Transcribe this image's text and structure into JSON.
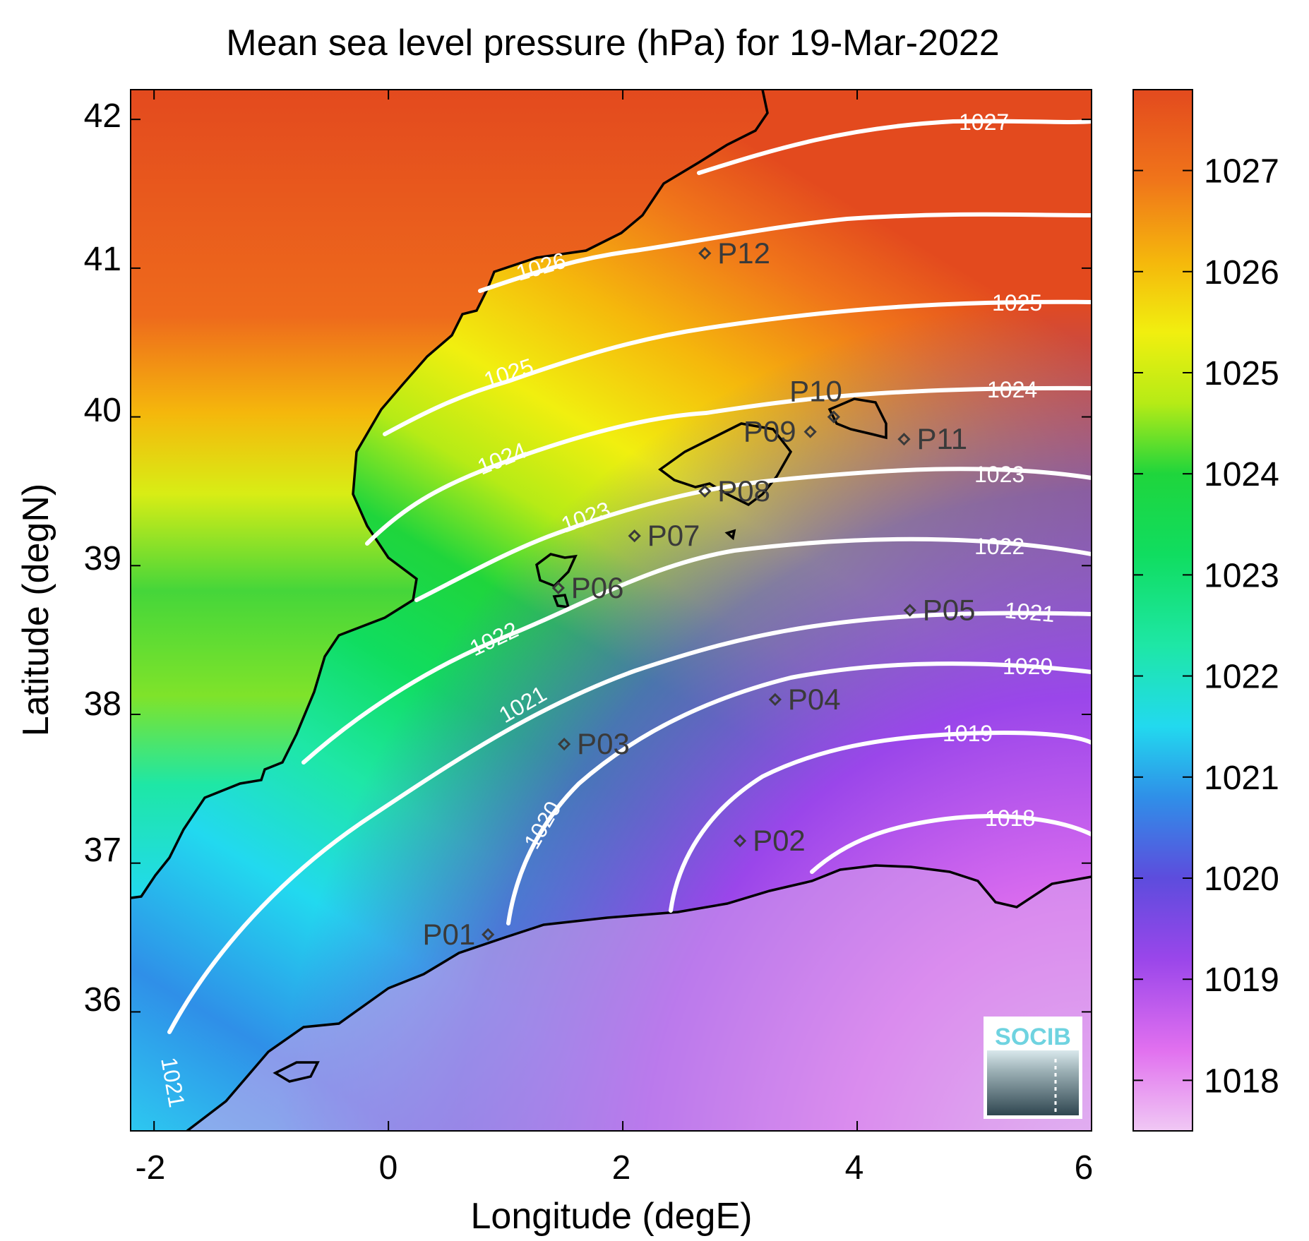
{
  "title": "Mean sea level pressure (hPa) for 19-Mar-2022",
  "x_axis": {
    "label": "Longitude (degE)",
    "ticks": [
      "-2",
      "0",
      "2",
      "4",
      "6"
    ]
  },
  "y_axis": {
    "label": "Latitude (degN)",
    "ticks": [
      "42",
      "41",
      "40",
      "39",
      "38",
      "37",
      "36"
    ]
  },
  "colorbar": {
    "ticks": [
      "1027",
      "1026",
      "1025",
      "1024",
      "1023",
      "1022",
      "1021",
      "1020",
      "1019",
      "1018"
    ],
    "range": [
      1017.5,
      1027.8
    ],
    "stops": [
      {
        "v": 1017.5,
        "c": "#f0c8f4"
      },
      {
        "v": 1018.3,
        "c": "#e170ef"
      },
      {
        "v": 1019.2,
        "c": "#9a46ea"
      },
      {
        "v": 1020.0,
        "c": "#5d4cdd"
      },
      {
        "v": 1020.8,
        "c": "#2f8fe8"
      },
      {
        "v": 1021.5,
        "c": "#22d9ef"
      },
      {
        "v": 1022.3,
        "c": "#1ee7a6"
      },
      {
        "v": 1023.2,
        "c": "#10dd60"
      },
      {
        "v": 1024.0,
        "c": "#1fd53c"
      },
      {
        "v": 1024.7,
        "c": "#b6eb16"
      },
      {
        "v": 1025.4,
        "c": "#f1ef0f"
      },
      {
        "v": 1026.1,
        "c": "#f5b70c"
      },
      {
        "v": 1026.9,
        "c": "#f0751a"
      },
      {
        "v": 1027.8,
        "c": "#e34a1e"
      }
    ]
  },
  "chart_data": {
    "type": "heatmap",
    "title": "Mean sea level pressure (hPa) for 19-Mar-2022",
    "xlabel": "Longitude (degE)",
    "ylabel": "Latitude (degN)",
    "xlim": [
      -2.2,
      6
    ],
    "ylim": [
      35.2,
      42.2
    ],
    "variable": "Mean sea level pressure (hPa)",
    "date": "19-Mar-2022",
    "isobars": [
      {
        "value": 1027,
        "label": "1027"
      },
      {
        "value": 1026,
        "label": "1026"
      },
      {
        "value": 1025,
        "label": "1025"
      },
      {
        "value": 1024,
        "label": "1024"
      },
      {
        "value": 1023,
        "label": "1023"
      },
      {
        "value": 1022,
        "label": "1022"
      },
      {
        "value": 1021,
        "label": "1021"
      },
      {
        "value": 1020,
        "label": "1020"
      },
      {
        "value": 1019,
        "label": "1019"
      },
      {
        "value": 1018,
        "label": "1018"
      }
    ],
    "stations": [
      {
        "name": "P01",
        "lon": 0.85,
        "lat": 36.52
      },
      {
        "name": "P02",
        "lon": 3.0,
        "lat": 37.15
      },
      {
        "name": "P03",
        "lon": 1.5,
        "lat": 37.8
      },
      {
        "name": "P04",
        "lon": 3.3,
        "lat": 38.1
      },
      {
        "name": "P05",
        "lon": 4.45,
        "lat": 38.7
      },
      {
        "name": "P06",
        "lon": 1.45,
        "lat": 38.85
      },
      {
        "name": "P07",
        "lon": 2.1,
        "lat": 39.2
      },
      {
        "name": "P08",
        "lon": 2.7,
        "lat": 39.5
      },
      {
        "name": "P09",
        "lon": 3.6,
        "lat": 39.9
      },
      {
        "name": "P10",
        "lon": 3.8,
        "lat": 40.0
      },
      {
        "name": "P11",
        "lon": 4.4,
        "lat": 39.85
      },
      {
        "name": "P12",
        "lon": 2.7,
        "lat": 41.1
      }
    ]
  },
  "logo": {
    "text": "SOCIB"
  }
}
